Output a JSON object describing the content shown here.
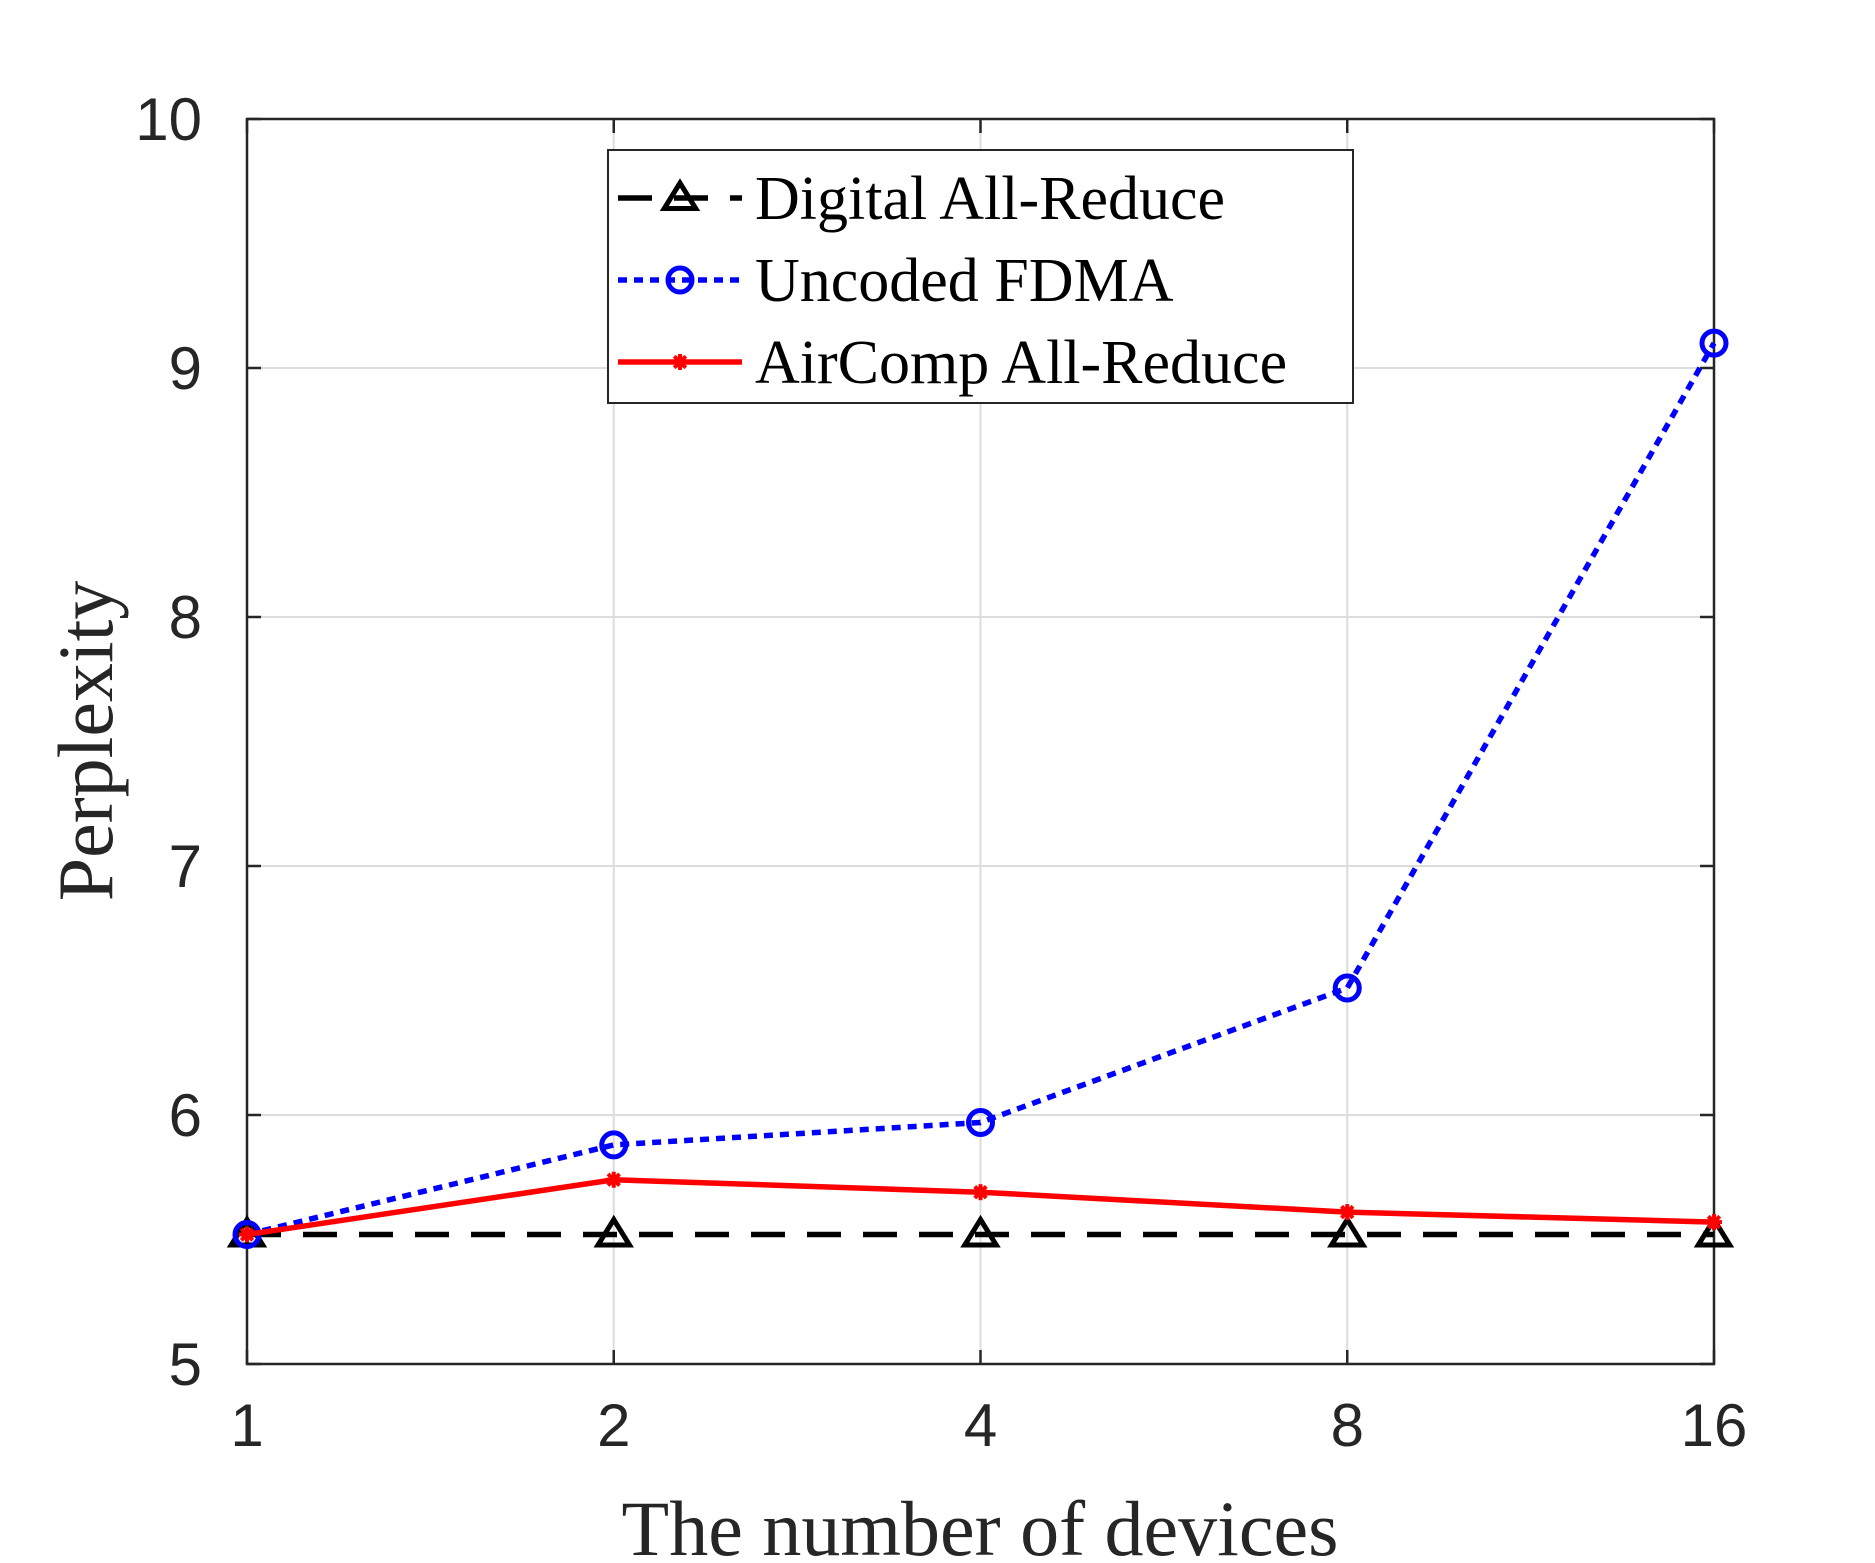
{
  "chart_data": {
    "type": "line",
    "title": "",
    "xlabel": "The number of devices",
    "ylabel": "Perplexity",
    "categories": [
      "1",
      "2",
      "4",
      "8",
      "16"
    ],
    "ylim": [
      5,
      10
    ],
    "yticks": [
      5,
      6,
      7,
      8,
      9,
      10
    ],
    "grid": true,
    "legend_position": "top-center",
    "series": [
      {
        "name": "Digital All-Reduce",
        "values": [
          5.52,
          5.52,
          5.52,
          5.52,
          5.52
        ],
        "color": "#000000",
        "line_style": "dashed",
        "marker": "triangle"
      },
      {
        "name": "Uncoded FDMA",
        "values": [
          5.52,
          5.88,
          5.97,
          6.51,
          9.1
        ],
        "color": "#0000ff",
        "line_style": "dotted",
        "marker": "circle"
      },
      {
        "name": "AirComp All-Reduce",
        "values": [
          5.52,
          5.74,
          5.69,
          5.61,
          5.57
        ],
        "color": "#ff0000",
        "line_style": "solid",
        "marker": "star"
      }
    ]
  }
}
